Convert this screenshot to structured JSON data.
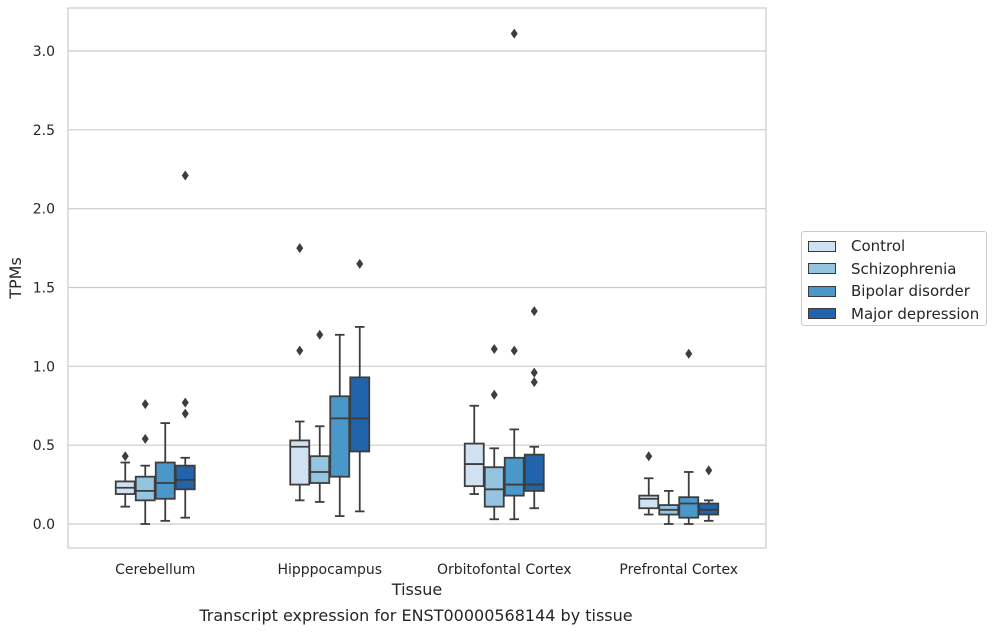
{
  "chart_data": {
    "type": "boxplot",
    "caption": "Transcript expression for ENST00000568144 by tissue",
    "xlabel": "Tissue",
    "ylabel": "TPMs",
    "ylim": [
      -0.15,
      3.25
    ],
    "yticks": [
      0.0,
      0.5,
      1.0,
      1.5,
      2.0,
      2.5,
      3.0
    ],
    "ytick_labels": [
      "0.0",
      "0.5",
      "1.0",
      "1.5",
      "2.0",
      "2.5",
      "3.0"
    ],
    "grid": "horizontal",
    "legend_position": "right",
    "categories": [
      "Cerebellum",
      "Hipppocampus",
      "Orbitofontal Cortex",
      "Prefrontal Cortex"
    ],
    "series": [
      {
        "name": "Control",
        "color": "#d0e1f2",
        "boxes": [
          {
            "whislo": 0.11,
            "q1": 0.19,
            "med": 0.23,
            "q3": 0.27,
            "whishi": 0.39,
            "fliers": [
              0.43
            ]
          },
          {
            "whislo": 0.15,
            "q1": 0.25,
            "med": 0.49,
            "q3": 0.53,
            "whishi": 0.65,
            "fliers": [
              1.1,
              1.75
            ]
          },
          {
            "whislo": 0.19,
            "q1": 0.24,
            "med": 0.38,
            "q3": 0.51,
            "whishi": 0.75,
            "fliers": []
          },
          {
            "whislo": 0.06,
            "q1": 0.1,
            "med": 0.16,
            "q3": 0.18,
            "whishi": 0.29,
            "fliers": [
              0.43
            ]
          }
        ]
      },
      {
        "name": "Schizophrenia",
        "color": "#94c4df",
        "boxes": [
          {
            "whislo": 0.0,
            "q1": 0.15,
            "med": 0.21,
            "q3": 0.3,
            "whishi": 0.37,
            "fliers": [
              0.54,
              0.76
            ]
          },
          {
            "whislo": 0.14,
            "q1": 0.26,
            "med": 0.33,
            "q3": 0.43,
            "whishi": 0.62,
            "fliers": [
              1.2
            ]
          },
          {
            "whislo": 0.03,
            "q1": 0.11,
            "med": 0.22,
            "q3": 0.36,
            "whishi": 0.48,
            "fliers": [
              0.82,
              1.11
            ]
          },
          {
            "whislo": 0.0,
            "q1": 0.06,
            "med": 0.09,
            "q3": 0.12,
            "whishi": 0.21,
            "fliers": []
          }
        ]
      },
      {
        "name": "Bipolar disorder",
        "color": "#4a98c9",
        "boxes": [
          {
            "whislo": 0.02,
            "q1": 0.16,
            "med": 0.26,
            "q3": 0.39,
            "whishi": 0.64,
            "fliers": []
          },
          {
            "whislo": 0.05,
            "q1": 0.3,
            "med": 0.67,
            "q3": 0.81,
            "whishi": 1.2,
            "fliers": []
          },
          {
            "whislo": 0.03,
            "q1": 0.18,
            "med": 0.25,
            "q3": 0.42,
            "whishi": 0.6,
            "fliers": [
              1.1,
              3.11
            ]
          },
          {
            "whislo": 0.0,
            "q1": 0.04,
            "med": 0.13,
            "q3": 0.17,
            "whishi": 0.33,
            "fliers": [
              1.08
            ]
          }
        ]
      },
      {
        "name": "Major depression",
        "color": "#2164ab",
        "boxes": [
          {
            "whislo": 0.04,
            "q1": 0.22,
            "med": 0.28,
            "q3": 0.37,
            "whishi": 0.42,
            "fliers": [
              0.7,
              0.77,
              2.21
            ]
          },
          {
            "whislo": 0.08,
            "q1": 0.46,
            "med": 0.67,
            "q3": 0.93,
            "whishi": 1.25,
            "fliers": [
              1.65
            ]
          },
          {
            "whislo": 0.1,
            "q1": 0.21,
            "med": 0.25,
            "q3": 0.44,
            "whishi": 0.49,
            "fliers": [
              0.9,
              0.96,
              1.35
            ]
          },
          {
            "whislo": 0.02,
            "q1": 0.06,
            "med": 0.09,
            "q3": 0.13,
            "whishi": 0.15,
            "fliers": [
              0.34
            ]
          }
        ]
      }
    ]
  }
}
